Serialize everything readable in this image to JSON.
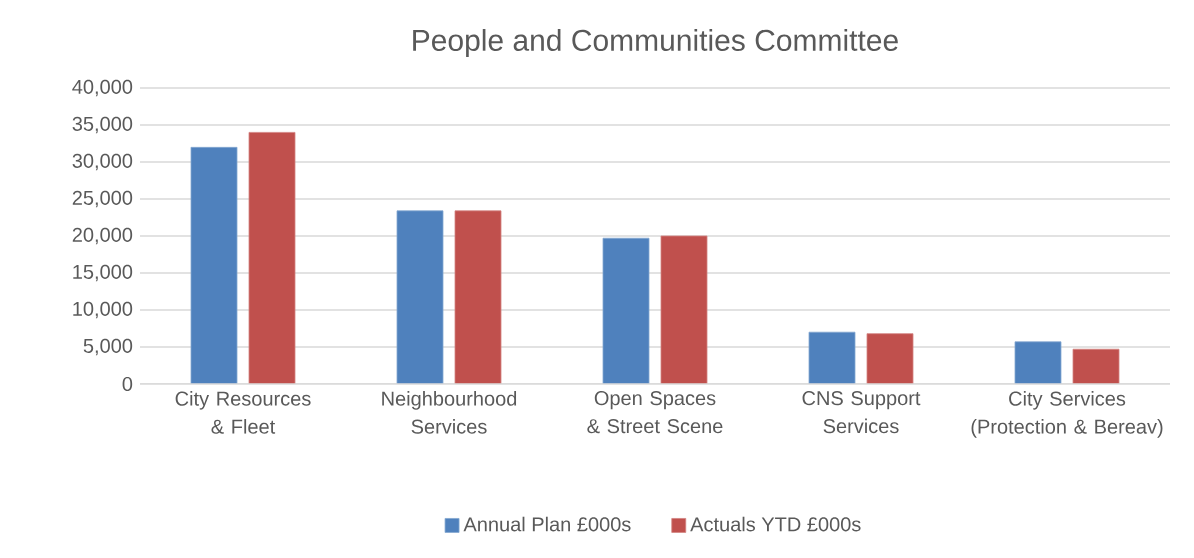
{
  "chart_data": {
    "type": "bar",
    "title": "People and Communities Committee",
    "categories": [
      "City Resources & Fleet",
      "Neighbourhood Services",
      "Open Spaces & Street Scene",
      "CNS Support Services",
      "City Services (Protection & Bereav)"
    ],
    "series": [
      {
        "name": "Annual Plan  £000s",
        "color": "#4f81bd",
        "values": [
          32000,
          23400,
          19700,
          7000,
          5700
        ]
      },
      {
        "name": "Actuals YTD £000s",
        "color": "#c0504d",
        "values": [
          34000,
          23400,
          20000,
          6800,
          4700
        ]
      }
    ],
    "ylim": [
      0,
      40000
    ],
    "yticks": [
      {
        "value": 0,
        "label": "0"
      },
      {
        "value": 5000,
        "label": "5,000"
      },
      {
        "value": 10000,
        "label": "10,000"
      },
      {
        "value": 15000,
        "label": "15,000"
      },
      {
        "value": 20000,
        "label": "20,000"
      },
      {
        "value": 25000,
        "label": "25,000"
      },
      {
        "value": 30000,
        "label": "30,000"
      },
      {
        "value": 35000,
        "label": "35,000"
      },
      {
        "value": 40000,
        "label": "40,000"
      }
    ],
    "grid": "y",
    "legend": "bottom"
  }
}
